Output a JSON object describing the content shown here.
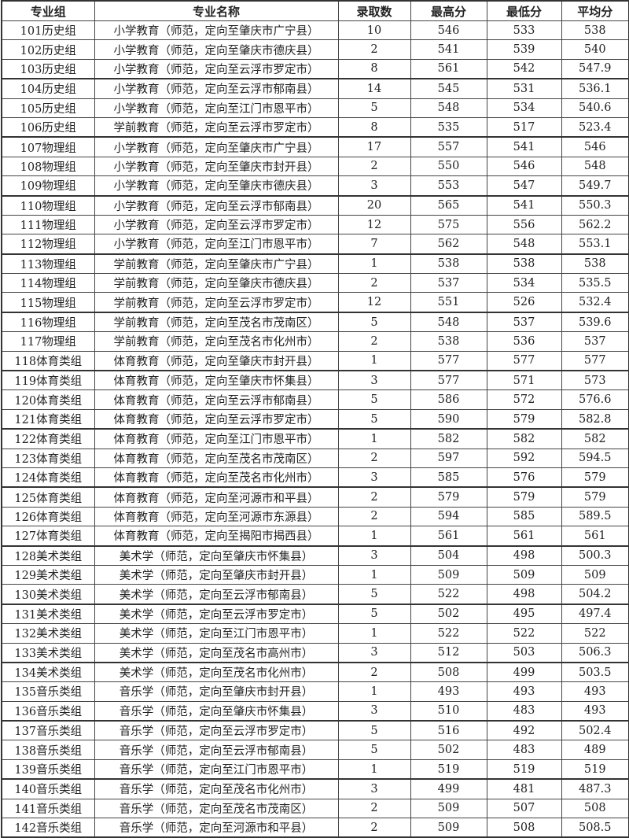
{
  "table": {
    "headers": [
      "专业组",
      "专业名称",
      "录取数",
      "最高分",
      "最低分",
      "平均分"
    ],
    "rows": [
      [
        "101历史组",
        "小学教育（师范，定向至肇庆市广宁县）",
        "10",
        "546",
        "533",
        "538"
      ],
      [
        "102历史组",
        "小学教育（师范，定向至肇庆市德庆县）",
        "2",
        "541",
        "539",
        "540"
      ],
      [
        "103历史组",
        "小学教育（师范，定向至云浮市罗定市）",
        "8",
        "561",
        "542",
        "547.9"
      ],
      [
        "104历史组",
        "小学教育（师范，定向至云浮市郁南县）",
        "14",
        "545",
        "531",
        "536.1"
      ],
      [
        "105历史组",
        "小学教育（师范，定向至江门市恩平市）",
        "5",
        "548",
        "534",
        "540.6"
      ],
      [
        "106历史组",
        "学前教育（师范，定向至云浮市罗定市）",
        "8",
        "535",
        "517",
        "523.4"
      ],
      [
        "107物理组",
        "小学教育（师范，定向至肇庆市广宁县）",
        "17",
        "557",
        "541",
        "546"
      ],
      [
        "108物理组",
        "小学教育（师范，定向至肇庆市封开县）",
        "2",
        "550",
        "546",
        "548"
      ],
      [
        "109物理组",
        "小学教育（师范，定向至肇庆市德庆县）",
        "3",
        "553",
        "547",
        "549.7"
      ],
      [
        "110物理组",
        "小学教育（师范，定向至云浮市郁南县）",
        "20",
        "565",
        "541",
        "550.3"
      ],
      [
        "111物理组",
        "小学教育（师范，定向至云浮市罗定市）",
        "12",
        "575",
        "556",
        "562.2"
      ],
      [
        "112物理组",
        "小学教育（师范，定向至江门市恩平市）",
        "7",
        "562",
        "548",
        "553.1"
      ],
      [
        "113物理组",
        "学前教育（师范，定向至肇庆市广宁县）",
        "1",
        "538",
        "538",
        "538"
      ],
      [
        "114物理组",
        "学前教育（师范，定向至肇庆市德庆县）",
        "2",
        "537",
        "534",
        "535.5"
      ],
      [
        "115物理组",
        "学前教育（师范，定向至云浮市罗定市）",
        "12",
        "551",
        "526",
        "532.4"
      ],
      [
        "116物理组",
        "学前教育（师范，定向至茂名市茂南区）",
        "5",
        "548",
        "537",
        "539.6"
      ],
      [
        "117物理组",
        "学前教育（师范，定向至茂名市化州市）",
        "2",
        "538",
        "536",
        "537"
      ],
      [
        "118体育类组",
        "体育教育（师范，定向至肇庆市封开县）",
        "1",
        "577",
        "577",
        "577"
      ],
      [
        "119体育类组",
        "体育教育（师范，定向至肇庆市怀集县）",
        "3",
        "577",
        "571",
        "573"
      ],
      [
        "120体育类组",
        "体育教育（师范，定向至云浮市郁南县）",
        "5",
        "586",
        "572",
        "576.6"
      ],
      [
        "121体育类组",
        "体育教育（师范，定向至云浮市罗定市）",
        "5",
        "590",
        "579",
        "582.8"
      ],
      [
        "122体育类组",
        "体育教育（师范，定向至江门市恩平市）",
        "1",
        "582",
        "582",
        "582"
      ],
      [
        "123体育类组",
        "体育教育（师范，定向至茂名市茂南区）",
        "2",
        "597",
        "592",
        "594.5"
      ],
      [
        "124体育类组",
        "体育教育（师范，定向至茂名市化州市）",
        "3",
        "585",
        "576",
        "579"
      ],
      [
        "125体育类组",
        "体育教育（师范，定向至河源市和平县）",
        "2",
        "579",
        "579",
        "579"
      ],
      [
        "126体育类组",
        "体育教育（师范，定向至河源市东源县）",
        "2",
        "594",
        "585",
        "589.5"
      ],
      [
        "127体育类组",
        "体育教育（师范，定向至揭阳市揭西县）",
        "1",
        "561",
        "561",
        "561"
      ],
      [
        "128美术类组",
        "美术学（师范，定向至肇庆市怀集县）",
        "3",
        "504",
        "498",
        "500.3"
      ],
      [
        "129美术类组",
        "美术学（师范，定向至肇庆市封开县）",
        "1",
        "509",
        "509",
        "509"
      ],
      [
        "130美术类组",
        "美术学（师范，定向至云浮市郁南县）",
        "5",
        "522",
        "498",
        "504.2"
      ],
      [
        "131美术类组",
        "美术学（师范，定向至云浮市罗定市）",
        "5",
        "502",
        "495",
        "497.4"
      ],
      [
        "132美术类组",
        "美术学（师范，定向至江门市恩平市）",
        "1",
        "522",
        "522",
        "522"
      ],
      [
        "133美术类组",
        "美术学（师范，定向至茂名市高州市）",
        "3",
        "512",
        "503",
        "506.3"
      ],
      [
        "134美术类组",
        "美术学（师范，定向至茂名市化州市）",
        "2",
        "508",
        "499",
        "503.5"
      ],
      [
        "135音乐类组",
        "音乐学（师范，定向至肇庆市封开县）",
        "1",
        "493",
        "493",
        "493"
      ],
      [
        "136音乐类组",
        "音乐学（师范，定向至肇庆市怀集县）",
        "3",
        "510",
        "483",
        "493"
      ],
      [
        "137音乐类组",
        "音乐学（师范，定向至云浮市罗定市）",
        "5",
        "516",
        "492",
        "502.4"
      ],
      [
        "138音乐类组",
        "音乐学（师范，定向至云浮市郁南县）",
        "5",
        "502",
        "483",
        "489"
      ],
      [
        "139音乐类组",
        "音乐学（师范，定向至江门市恩平市）",
        "1",
        "519",
        "519",
        "519"
      ],
      [
        "140音乐类组",
        "音乐学（师范，定向至茂名市化州市）",
        "3",
        "499",
        "481",
        "487.3"
      ],
      [
        "141音乐类组",
        "音乐学（师范，定向至茂名市茂南区）",
        "2",
        "509",
        "507",
        "508"
      ],
      [
        "142音乐类组",
        "音乐学（师范，定向至河源市和平县）",
        "2",
        "509",
        "508",
        "508.5"
      ]
    ]
  }
}
